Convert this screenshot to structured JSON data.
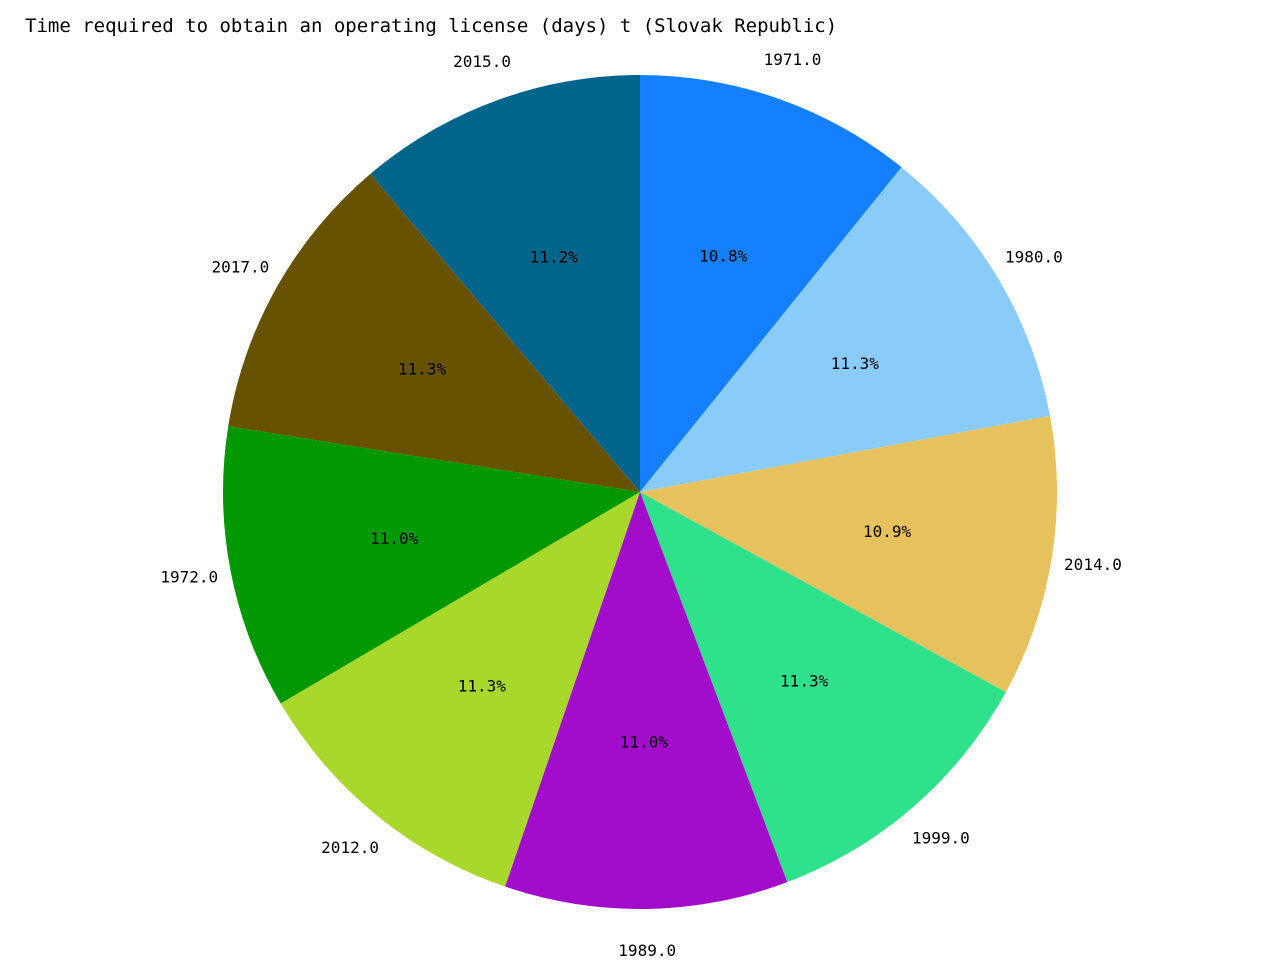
{
  "chart_data": {
    "type": "pie",
    "title": "Time required to obtain an operating license (days) t (Slovak Republic)",
    "slices": [
      {
        "label": "1971.0",
        "percent": 10.8,
        "percent_label": "10.8%",
        "color": "#1480ff"
      },
      {
        "label": "1980.0",
        "percent": 11.3,
        "percent_label": "11.3%",
        "color": "#8accf9"
      },
      {
        "label": "2014.0",
        "percent": 10.9,
        "percent_label": "10.9%",
        "color": "#e6c15e"
      },
      {
        "label": "1999.0",
        "percent": 11.3,
        "percent_label": "11.3%",
        "color": "#30e18b"
      },
      {
        "label": "1989.0",
        "percent": 11.0,
        "percent_label": "11.0%",
        "color": "#a10dca"
      },
      {
        "label": "2012.0",
        "percent": 11.3,
        "percent_label": "11.3%",
        "color": "#a8d82b"
      },
      {
        "label": "1972.0",
        "percent": 11.0,
        "percent_label": "11.0%",
        "color": "#019801"
      },
      {
        "label": "2017.0",
        "percent": 11.3,
        "percent_label": "11.3%",
        "color": "#665201"
      },
      {
        "label": "2015.0",
        "percent": 11.2,
        "percent_label": "11.2%",
        "color": "#01658b"
      }
    ],
    "start": "top",
    "direction": "clockwise",
    "legend": "none"
  }
}
